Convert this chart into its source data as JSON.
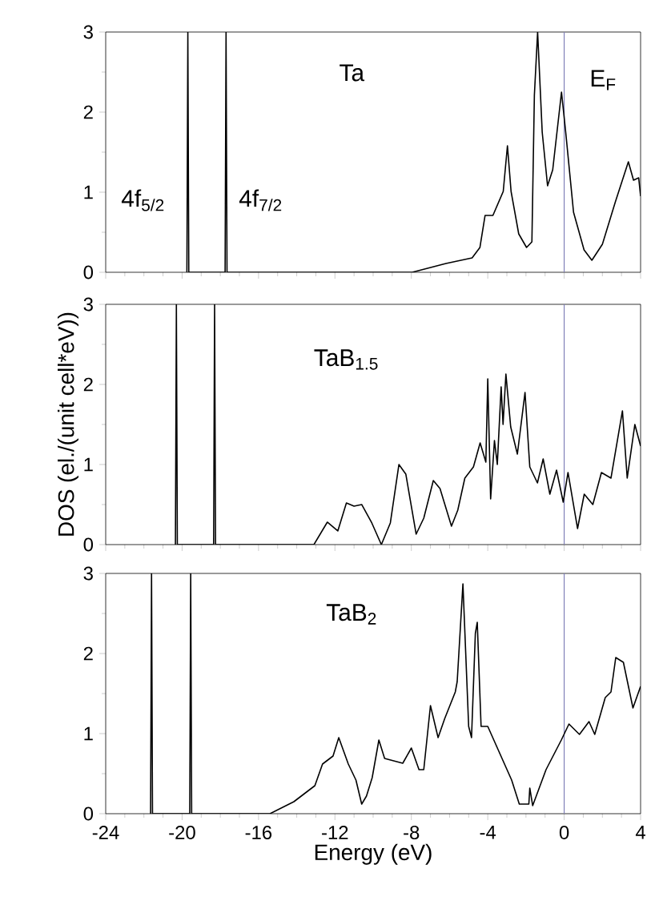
{
  "chart_data": [
    {
      "type": "line",
      "xlim": [
        -24,
        4
      ],
      "ylim": [
        0,
        3
      ],
      "xticks": [
        -24,
        -20,
        -16,
        -12,
        -8,
        -4,
        0,
        4
      ],
      "yticks": [
        0,
        1,
        2,
        3
      ],
      "tick_labels": "y",
      "ref_lines": [
        {
          "axis": "x",
          "value": 0,
          "color": "#8080b8"
        }
      ],
      "annotations": [
        "Ta",
        "E$_{F}$",
        "4f$_{5/2}$",
        "4f$_{7/2}$"
      ],
      "series": [
        {
          "color": "#000000",
          "x": [
            -19.75,
            -19.7,
            -19.65,
            -17.75,
            -17.7,
            -17.65,
            -7.96,
            -6.19,
            -4.82,
            -4.41,
            -4.14,
            -3.73,
            -3.19,
            -2.97,
            -2.78,
            -2.38,
            -1.97,
            -1.69,
            -1.56,
            -1.39,
            -1.15,
            -0.87,
            -0.6,
            -0.14,
            0.08,
            0.49,
            1.04,
            1.45,
            2.0,
            2.68,
            3.36,
            3.63,
            3.9,
            4.0
          ],
          "values": [
            0,
            3,
            0,
            0,
            3,
            0,
            0,
            0.11,
            0.18,
            0.31,
            0.71,
            0.71,
            1.01,
            1.58,
            1.01,
            0.48,
            0.31,
            0.38,
            2.21,
            3,
            1.75,
            1.08,
            1.28,
            2.25,
            1.75,
            0.75,
            0.28,
            0.15,
            0.35,
            0.88,
            1.38,
            1.15,
            1.18,
            0.95
          ]
        }
      ]
    },
    {
      "type": "line",
      "xlim": [
        -24,
        4
      ],
      "ylim": [
        0,
        3
      ],
      "xticks": [
        -24,
        -20,
        -16,
        -12,
        -8,
        -4,
        0,
        4
      ],
      "yticks": [
        0,
        1,
        2,
        3
      ],
      "tick_labels": "y",
      "ylabel": "DOS (el./(unit cell*eV))",
      "ref_lines": [
        {
          "axis": "x",
          "value": 0,
          "color": "#8080b8"
        }
      ],
      "annotations": [
        "TaB$_{1.5}$"
      ],
      "series": [
        {
          "color": "#000000",
          "x": [
            -20.35,
            -20.3,
            -20.25,
            -18.35,
            -18.3,
            -18.25,
            -13.1,
            -12.4,
            -11.85,
            -11.4,
            -11.0,
            -10.6,
            -10.07,
            -9.57,
            -9.1,
            -8.65,
            -8.29,
            -7.75,
            -7.35,
            -6.85,
            -6.5,
            -5.9,
            -5.57,
            -5.2,
            -4.75,
            -4.4,
            -4.1,
            -4.0,
            -3.85,
            -3.65,
            -3.5,
            -3.3,
            -3.2,
            -3.05,
            -2.8,
            -2.45,
            -2.05,
            -1.8,
            -1.4,
            -1.1,
            -0.75,
            -0.4,
            -0.05,
            0.2,
            0.7,
            1.05,
            1.5,
            1.95,
            2.45,
            3.05,
            3.3,
            3.7,
            4.0
          ],
          "values": [
            0,
            3,
            0,
            0,
            3,
            0,
            0,
            0.28,
            0.17,
            0.52,
            0.48,
            0.5,
            0.27,
            0,
            0.27,
            1.0,
            0.88,
            0.13,
            0.33,
            0.8,
            0.7,
            0.23,
            0.43,
            0.83,
            0.97,
            1.27,
            1.03,
            2.07,
            0.57,
            1.3,
            1.0,
            1.97,
            1.5,
            2.13,
            1.47,
            1.13,
            1.9,
            0.97,
            0.77,
            1.07,
            0.63,
            0.93,
            0.53,
            0.9,
            0.2,
            0.63,
            0.5,
            0.9,
            0.83,
            1.67,
            0.83,
            1.5,
            1.23
          ]
        }
      ]
    },
    {
      "type": "line",
      "xlim": [
        -24,
        4
      ],
      "ylim": [
        0,
        3
      ],
      "xticks": [
        -24,
        -20,
        -16,
        -12,
        -8,
        -4,
        0,
        4
      ],
      "yticks": [
        0,
        1,
        2,
        3
      ],
      "xlabel": "Energy (eV)",
      "ref_lines": [
        {
          "axis": "x",
          "value": 0,
          "color": "#8080b8"
        }
      ],
      "annotations": [
        "TaB$_{2}$"
      ],
      "series": [
        {
          "color": "#000000",
          "x": [
            -21.65,
            -21.6,
            -21.55,
            -19.6,
            -19.55,
            -19.5,
            -15.4,
            -14.15,
            -13.05,
            -12.65,
            -12.1,
            -11.8,
            -11.3,
            -10.9,
            -10.6,
            -10.35,
            -10.05,
            -9.7,
            -9.4,
            -8.45,
            -8.0,
            -7.6,
            -7.35,
            -7.0,
            -6.6,
            -6.25,
            -5.7,
            -5.6,
            -5.3,
            -5.0,
            -4.85,
            -4.65,
            -4.55,
            -4.35,
            -4.0,
            -2.75,
            -2.35,
            -1.85,
            -1.8,
            -1.65,
            -0.95,
            -0.15,
            0.25,
            0.8,
            1.3,
            1.6,
            2.15,
            2.45,
            2.7,
            3.1,
            3.6,
            4.0
          ],
          "values": [
            0,
            3,
            0,
            0,
            3,
            0,
            0,
            0.15,
            0.35,
            0.62,
            0.72,
            0.95,
            0.62,
            0.42,
            0.12,
            0.22,
            0.45,
            0.92,
            0.69,
            0.63,
            0.82,
            0.55,
            0.55,
            1.35,
            0.95,
            1.19,
            1.52,
            1.65,
            2.87,
            1.09,
            0.95,
            2.25,
            2.39,
            1.09,
            1.09,
            0.42,
            0.12,
            0.12,
            0.32,
            0.1,
            0.55,
            0.92,
            1.12,
            0.99,
            1.15,
            0.99,
            1.45,
            1.52,
            1.95,
            1.89,
            1.32,
            1.59
          ]
        }
      ]
    }
  ]
}
